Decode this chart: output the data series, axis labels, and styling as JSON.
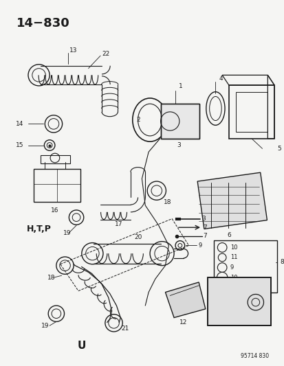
{
  "title": "14−830",
  "watermark": "95714 830",
  "bg_color": "#f5f5f3",
  "line_color": "#1a1a1a",
  "label_htp": "H,T,P",
  "label_u": "U",
  "fig_width": 4.14,
  "fig_height": 5.33,
  "dpi": 100
}
